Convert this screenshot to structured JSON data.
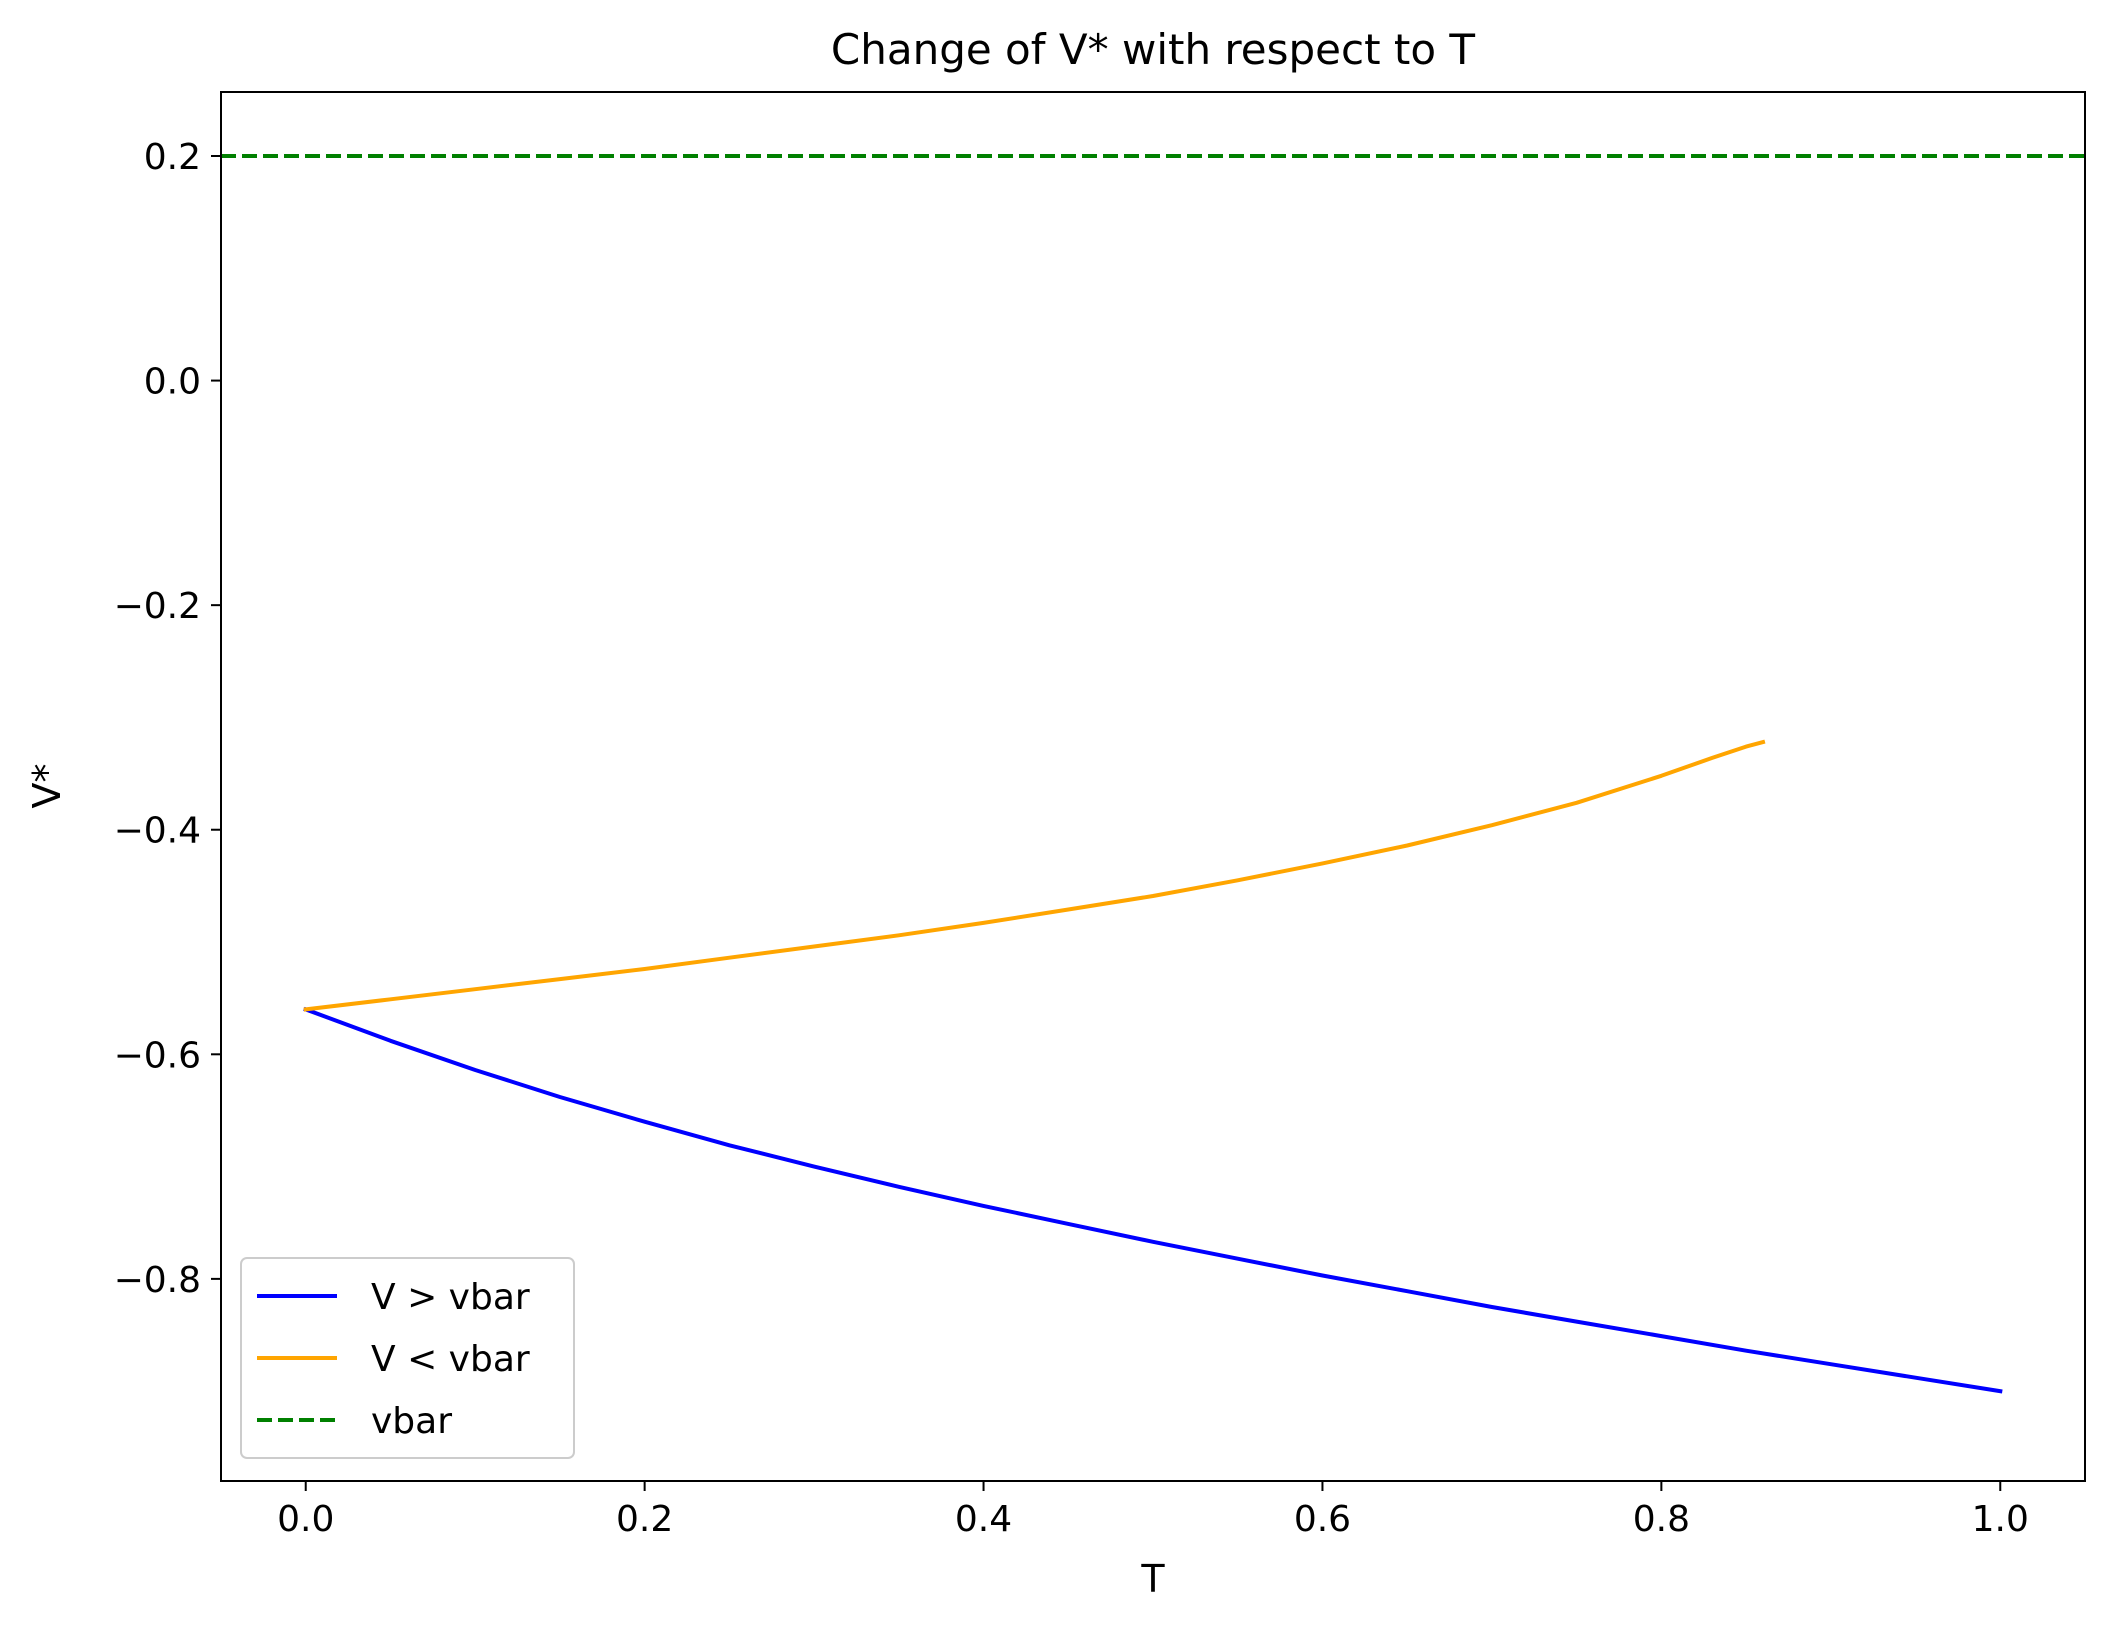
{
  "chart_data": {
    "type": "line",
    "title": "Change of V* with respect to T",
    "xlabel": "T",
    "ylabel": "V*",
    "xlim": [
      -0.05,
      1.05
    ],
    "ylim": [
      -0.98,
      0.257
    ],
    "x_ticks": [
      0.0,
      0.2,
      0.4,
      0.6,
      0.8,
      1.0
    ],
    "x_tick_labels": [
      "0.0",
      "0.2",
      "0.4",
      "0.6",
      "0.8",
      "1.0"
    ],
    "y_ticks": [
      0.2,
      0.0,
      -0.2,
      -0.4,
      -0.6,
      -0.8
    ],
    "y_tick_labels": [
      "0.2",
      "0.0",
      "−0.2",
      "−0.4",
      "−0.6",
      "−0.8"
    ],
    "grid": false,
    "legend_position": "lower-left",
    "series": [
      {
        "name": "V > vbar",
        "color": "#0000ff",
        "style": "solid",
        "x": [
          0.0,
          0.05,
          0.1,
          0.15,
          0.2,
          0.25,
          0.3,
          0.35,
          0.4,
          0.45,
          0.5,
          0.55,
          0.6,
          0.65,
          0.7,
          0.75,
          0.8,
          0.85,
          0.9,
          0.95,
          1.0
        ],
        "y": [
          -0.56,
          -0.588,
          -0.614,
          -0.638,
          -0.66,
          -0.681,
          -0.7,
          -0.718,
          -0.735,
          -0.751,
          -0.767,
          -0.782,
          -0.797,
          -0.811,
          -0.825,
          -0.838,
          -0.851,
          -0.864,
          -0.876,
          -0.888,
          -0.9
        ]
      },
      {
        "name": "V < vbar",
        "color": "#ffa500",
        "style": "solid",
        "x": [
          0.0,
          0.05,
          0.1,
          0.15,
          0.2,
          0.25,
          0.3,
          0.35,
          0.4,
          0.45,
          0.5,
          0.55,
          0.6,
          0.65,
          0.7,
          0.75,
          0.8,
          0.83,
          0.85,
          0.86
        ],
        "y": [
          -0.56,
          -0.551,
          -0.542,
          -0.533,
          -0.524,
          -0.514,
          -0.504,
          -0.494,
          -0.483,
          -0.471,
          -0.459,
          -0.445,
          -0.43,
          -0.414,
          -0.396,
          -0.376,
          -0.352,
          -0.336,
          -0.326,
          -0.322
        ]
      },
      {
        "name": "vbar",
        "color": "#008000",
        "style": "dashed",
        "x": [
          -0.05,
          1.05
        ],
        "y": [
          0.2,
          0.2
        ]
      }
    ]
  }
}
